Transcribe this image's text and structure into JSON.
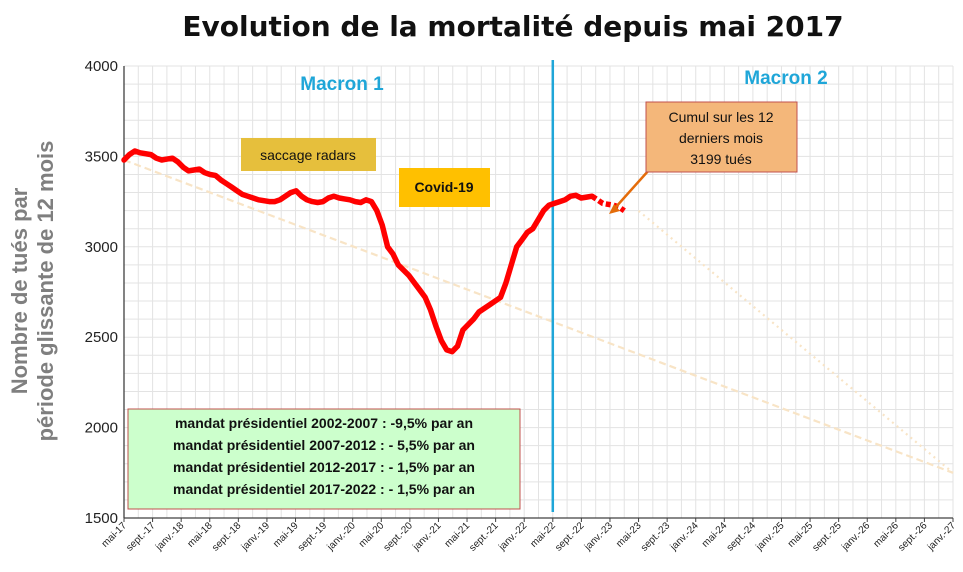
{
  "chart_data": {
    "type": "line",
    "title": "Evolution de la mortalité depuis mai 2017",
    "ylabel_line1": "Nombre de tués par",
    "ylabel_line2": "période  glissante de 12 mois",
    "ylim": [
      1500,
      4000
    ],
    "yticks": [
      "1500",
      "2000",
      "2500",
      "3000",
      "3500",
      "4000"
    ],
    "xticks": [
      "mai-17",
      "sept.-17",
      "janv.-18",
      "mai-18",
      "sept.-18",
      "janv.-19",
      "mai-19",
      "sept.-19",
      "janv.-20",
      "mai-20",
      "sept.-20",
      "janv.-21",
      "mai-21",
      "sept.-21",
      "janv.-22",
      "mai-22",
      "sept.-22",
      "janv.-23",
      "mai-23",
      "sept.-23",
      "janv.-24",
      "mai-24",
      "sept.-24",
      "janv.-25",
      "mai-25",
      "sept.-25",
      "janv.-26",
      "mai-26",
      "sept.-26",
      "janv.-27"
    ],
    "grid": true,
    "series": [
      {
        "color": "#ff0000",
        "values": [
          3480,
          3510,
          3530,
          3520,
          3515,
          3510,
          3490,
          3480,
          3485,
          3490,
          3470,
          3440,
          3420,
          3425,
          3430,
          3410,
          3400,
          3395,
          3370,
          3350,
          3330,
          3310,
          3290,
          3280,
          3270,
          3260,
          3255,
          3250,
          3250,
          3260,
          3280,
          3300,
          3310,
          3280,
          3260,
          3250,
          3245,
          3250,
          3270,
          3280,
          3270,
          3265,
          3260,
          3250,
          3245,
          3260,
          3250,
          3200,
          3120,
          3000,
          2960,
          2900,
          2870,
          2840,
          2800,
          2760,
          2720,
          2650,
          2560,
          2480,
          2430,
          2420,
          2450,
          2540,
          2570,
          2600,
          2640,
          2660,
          2680,
          2700,
          2720,
          2800,
          2900,
          3000,
          3040,
          3080,
          3100,
          3150,
          3200,
          3230,
          3240,
          3250,
          3260,
          3280,
          3285,
          3270,
          3275,
          3280,
          3260,
          3240,
          3235,
          3230,
          3220,
          3199
        ]
      }
    ],
    "trend_lines": [
      {
        "color": "#f8e4c6",
        "from": [
          "mai-17",
          3480
        ],
        "to": [
          "janv.-27",
          1750
        ]
      },
      {
        "color": "#f8e4c6",
        "from": [
          "mai-23",
          3199
        ],
        "to": [
          "janv.-27",
          1750
        ]
      }
    ],
    "markers": [
      {
        "label": "Macron 1",
        "color": "#1fa6d8"
      },
      {
        "label": "Macron 2",
        "color": "#1fa6d8",
        "divider_at": "mai-22"
      }
    ],
    "annotations": {
      "saccage": {
        "text": "saccage radars",
        "fill": "#e6bf3c"
      },
      "covid": {
        "text": "Covid-19",
        "fill": "#ffc000"
      },
      "cumul": {
        "lines": [
          "Cumul sur les 12",
          "derniers mois",
          "3199 tués"
        ],
        "fill": "#f4b77a",
        "border": "#c0504d",
        "arrow_color": "#e46c0a"
      }
    },
    "legend": {
      "fill": "#ccffcc",
      "border": "#c0504d",
      "lines": [
        "mandat présidentiel 2002-2007 : -9,5% par an",
        "mandat présidentiel 2007-2012 : - 5,5% par an",
        "mandat présidentiel 2012-2017 : - 1,5% par an",
        "mandat présidentiel 2017-2022 : - 1,5% par an"
      ]
    }
  }
}
